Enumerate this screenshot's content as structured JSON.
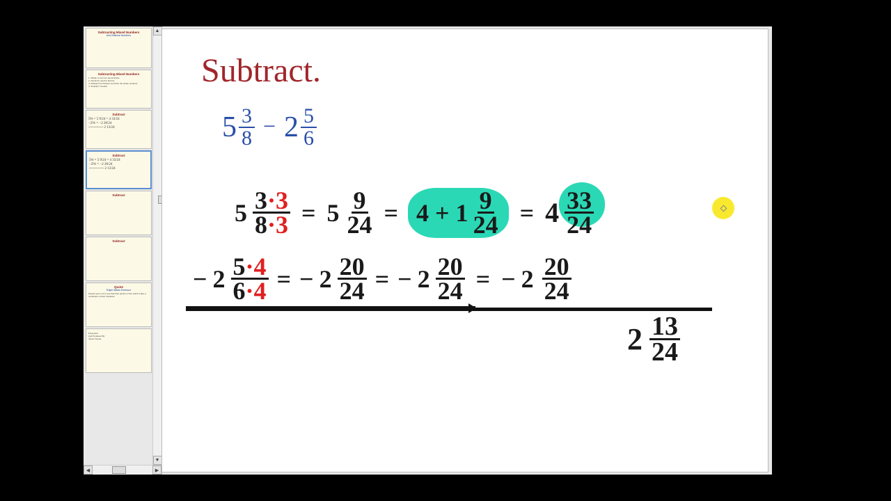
{
  "colors": {
    "page_bg": "#000000",
    "panel_bg": "#e8e8e8",
    "slide_bg": "#ffffff",
    "heading": "#a0262b",
    "math_typeset": "#2a4faa",
    "hand_black": "#1a1a1a",
    "hand_red": "#e02020",
    "highlight_teal": "#2bd8b5",
    "cursor_yellow": "#f9e92e"
  },
  "heading": "Subtract.",
  "problem": {
    "a_whole": "5",
    "a_num": "3",
    "a_den": "8",
    "op": "−",
    "b_whole": "2",
    "b_num": "5",
    "b_den": "6"
  },
  "row1": {
    "t1_whole": "5",
    "t1_num": "3",
    "t1_den": "8",
    "mult_num": "·3",
    "mult_den": "·3",
    "eq1": "=",
    "t2_whole": "5",
    "t2_num": "9",
    "t2_den": "24",
    "eq2": "=",
    "regroup": "4 + 1",
    "regroup_num": "9",
    "regroup_den": "24",
    "eq3": "=",
    "t3_whole": "4",
    "t3_num": "33",
    "t3_den": "24"
  },
  "row2": {
    "lead": "−",
    "t1_whole": "2",
    "t1_num": "5",
    "t1_den": "6",
    "mult_num": "·4",
    "mult_den": "·4",
    "eq1": "=",
    "t2_lead": "−",
    "t2_whole": "2",
    "t2_num": "20",
    "t2_den": "24",
    "eq2": "=",
    "t3_lead": "−",
    "t3_whole": "2",
    "t3_num": "20",
    "t3_den": "24",
    "eq3": "=",
    "t4_lead": "−",
    "t4_whole": "2",
    "t4_num": "20",
    "t4_den": "24"
  },
  "answer": {
    "whole": "2",
    "num": "13",
    "den": "24"
  },
  "thumbs": [
    {
      "title": "Subtracting Mixed Numbers",
      "sub": "And Rational Numbers",
      "h": 58
    },
    {
      "title": "Subtracting Mixed Numbers",
      "body": "1. Obtain a common denominator.\n2. Check for need to borrow.\n3. Subtract the fractions and then the whole numbers.\n4. Simplify if needed.",
      "h": 56
    },
    {
      "title": "Subtract",
      "math": true,
      "h": 56
    },
    {
      "title": "Subtract",
      "math": true,
      "selected": true,
      "h": 56
    },
    {
      "title": "Subtract",
      "sub": "",
      "h": 64
    },
    {
      "title": "Subtract",
      "sub": "",
      "h": 64
    },
    {
      "title": "Quote",
      "body": "People seem not to see that their opinion of the world is also a confession of their character.",
      "sub": "Ralph Waldo Emerson",
      "h": 64
    },
    {
      "title": "",
      "body": "Presented\nAnd Produced By\nJames Sousa",
      "h": 64
    }
  ]
}
